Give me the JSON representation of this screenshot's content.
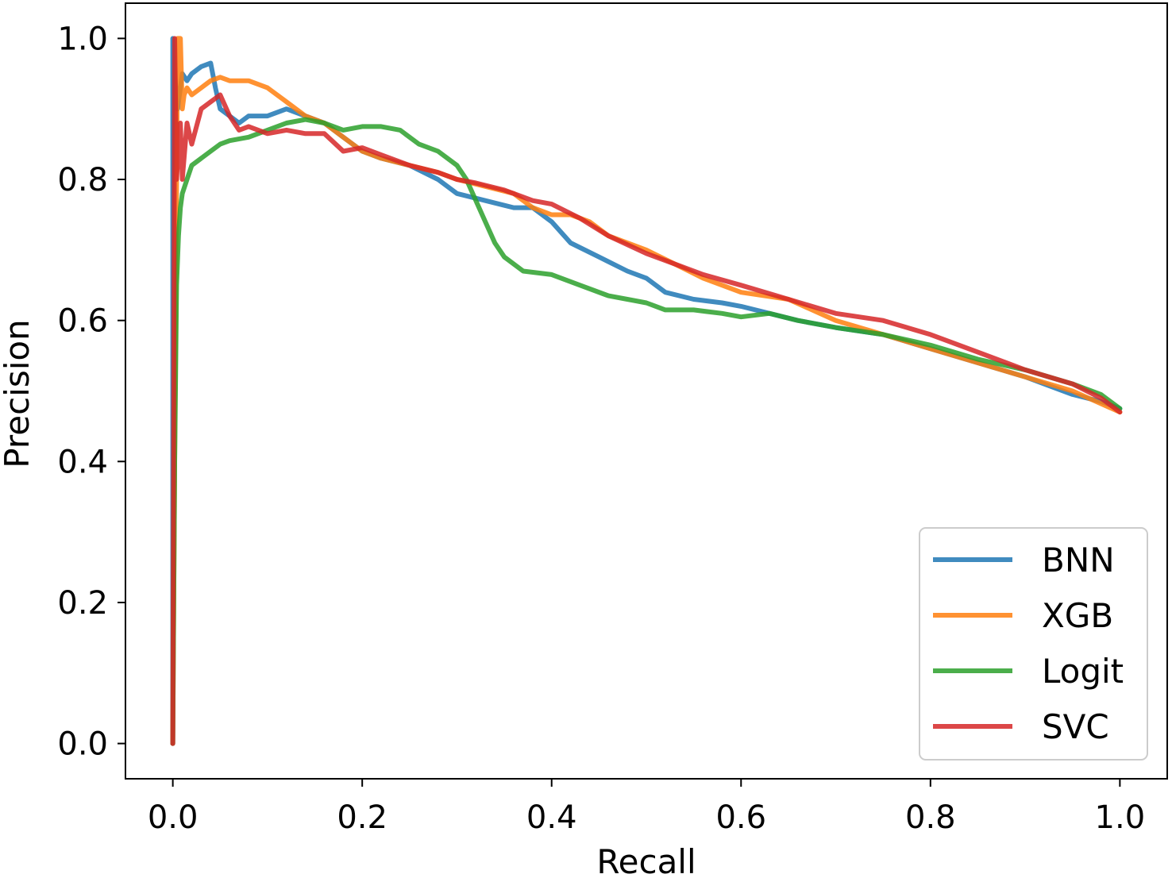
{
  "chart_data": {
    "type": "line",
    "title": "",
    "xlabel": "Recall",
    "ylabel": "Precision",
    "xlim": [
      -0.05,
      1.05
    ],
    "ylim": [
      -0.05,
      1.05
    ],
    "xticks": [
      0.0,
      0.2,
      0.4,
      0.6,
      0.8,
      1.0
    ],
    "yticks": [
      0.0,
      0.2,
      0.4,
      0.6,
      0.8,
      1.0
    ],
    "xtick_labels": [
      "0.0",
      "0.2",
      "0.4",
      "0.6",
      "0.8",
      "1.0"
    ],
    "ytick_labels": [
      "0.0",
      "0.2",
      "0.4",
      "0.6",
      "0.8",
      "1.0"
    ],
    "grid": false,
    "legend_position": "lower-right",
    "series": [
      {
        "name": "BNN",
        "color": "#1f77b4",
        "x": [
          0.0,
          0.0,
          0.002,
          0.005,
          0.008,
          0.01,
          0.015,
          0.02,
          0.03,
          0.04,
          0.045,
          0.05,
          0.06,
          0.07,
          0.08,
          0.1,
          0.12,
          0.14,
          0.16,
          0.18,
          0.2,
          0.22,
          0.25,
          0.28,
          0.3,
          0.33,
          0.36,
          0.38,
          0.4,
          0.42,
          0.45,
          0.48,
          0.5,
          0.52,
          0.55,
          0.58,
          0.6,
          0.63,
          0.66,
          0.7,
          0.75,
          0.8,
          0.85,
          0.9,
          0.95,
          0.98,
          1.0
        ],
        "y": [
          0.0,
          1.0,
          0.95,
          0.9,
          0.93,
          0.95,
          0.94,
          0.95,
          0.96,
          0.965,
          0.93,
          0.9,
          0.89,
          0.88,
          0.89,
          0.89,
          0.9,
          0.89,
          0.88,
          0.86,
          0.84,
          0.83,
          0.82,
          0.8,
          0.78,
          0.77,
          0.76,
          0.76,
          0.74,
          0.71,
          0.69,
          0.67,
          0.66,
          0.64,
          0.63,
          0.625,
          0.62,
          0.61,
          0.6,
          0.59,
          0.58,
          0.56,
          0.54,
          0.52,
          0.495,
          0.485,
          0.475
        ]
      },
      {
        "name": "XGB",
        "color": "#ff7f0e",
        "x": [
          0.0,
          0.005,
          0.008,
          0.01,
          0.012,
          0.015,
          0.02,
          0.03,
          0.04,
          0.05,
          0.06,
          0.08,
          0.1,
          0.12,
          0.14,
          0.16,
          0.18,
          0.2,
          0.22,
          0.25,
          0.28,
          0.3,
          0.33,
          0.36,
          0.38,
          0.4,
          0.42,
          0.44,
          0.46,
          0.5,
          0.53,
          0.56,
          0.6,
          0.65,
          0.7,
          0.75,
          0.8,
          0.85,
          0.9,
          0.95,
          1.0
        ],
        "y": [
          0.0,
          1.0,
          1.0,
          0.9,
          0.92,
          0.93,
          0.92,
          0.93,
          0.94,
          0.945,
          0.94,
          0.94,
          0.93,
          0.91,
          0.89,
          0.88,
          0.86,
          0.84,
          0.83,
          0.82,
          0.81,
          0.8,
          0.79,
          0.78,
          0.76,
          0.75,
          0.75,
          0.74,
          0.72,
          0.7,
          0.68,
          0.66,
          0.64,
          0.63,
          0.6,
          0.58,
          0.56,
          0.54,
          0.52,
          0.5,
          0.47
        ]
      },
      {
        "name": "Logit",
        "color": "#2ca02c",
        "x": [
          0.0,
          0.002,
          0.004,
          0.006,
          0.008,
          0.01,
          0.015,
          0.02,
          0.03,
          0.04,
          0.05,
          0.06,
          0.08,
          0.1,
          0.12,
          0.14,
          0.16,
          0.18,
          0.2,
          0.22,
          0.24,
          0.26,
          0.28,
          0.3,
          0.31,
          0.32,
          0.33,
          0.34,
          0.35,
          0.37,
          0.4,
          0.43,
          0.46,
          0.48,
          0.5,
          0.52,
          0.55,
          0.58,
          0.6,
          0.63,
          0.66,
          0.7,
          0.75,
          0.8,
          0.85,
          0.9,
          0.95,
          0.98,
          1.0
        ],
        "y": [
          0.0,
          0.4,
          0.65,
          0.72,
          0.76,
          0.78,
          0.8,
          0.82,
          0.83,
          0.84,
          0.85,
          0.855,
          0.86,
          0.87,
          0.88,
          0.885,
          0.88,
          0.87,
          0.875,
          0.875,
          0.87,
          0.85,
          0.84,
          0.82,
          0.8,
          0.77,
          0.74,
          0.71,
          0.69,
          0.67,
          0.665,
          0.65,
          0.635,
          0.63,
          0.625,
          0.615,
          0.615,
          0.61,
          0.605,
          0.61,
          0.6,
          0.59,
          0.58,
          0.565,
          0.545,
          0.53,
          0.51,
          0.495,
          0.475
        ]
      },
      {
        "name": "SVC",
        "color": "#d62728",
        "x": [
          0.0,
          0.002,
          0.004,
          0.006,
          0.008,
          0.01,
          0.015,
          0.02,
          0.03,
          0.04,
          0.05,
          0.06,
          0.07,
          0.08,
          0.1,
          0.12,
          0.14,
          0.16,
          0.18,
          0.2,
          0.22,
          0.25,
          0.28,
          0.3,
          0.32,
          0.35,
          0.38,
          0.4,
          0.43,
          0.46,
          0.5,
          0.53,
          0.56,
          0.6,
          0.65,
          0.7,
          0.75,
          0.8,
          0.85,
          0.9,
          0.95,
          0.98,
          1.0
        ],
        "y": [
          0.0,
          1.0,
          0.8,
          0.85,
          0.88,
          0.8,
          0.88,
          0.85,
          0.9,
          0.91,
          0.92,
          0.89,
          0.87,
          0.875,
          0.865,
          0.87,
          0.865,
          0.865,
          0.84,
          0.845,
          0.835,
          0.82,
          0.81,
          0.8,
          0.795,
          0.785,
          0.77,
          0.765,
          0.745,
          0.72,
          0.695,
          0.68,
          0.665,
          0.65,
          0.63,
          0.61,
          0.6,
          0.58,
          0.555,
          0.53,
          0.51,
          0.49,
          0.47
        ]
      }
    ]
  }
}
